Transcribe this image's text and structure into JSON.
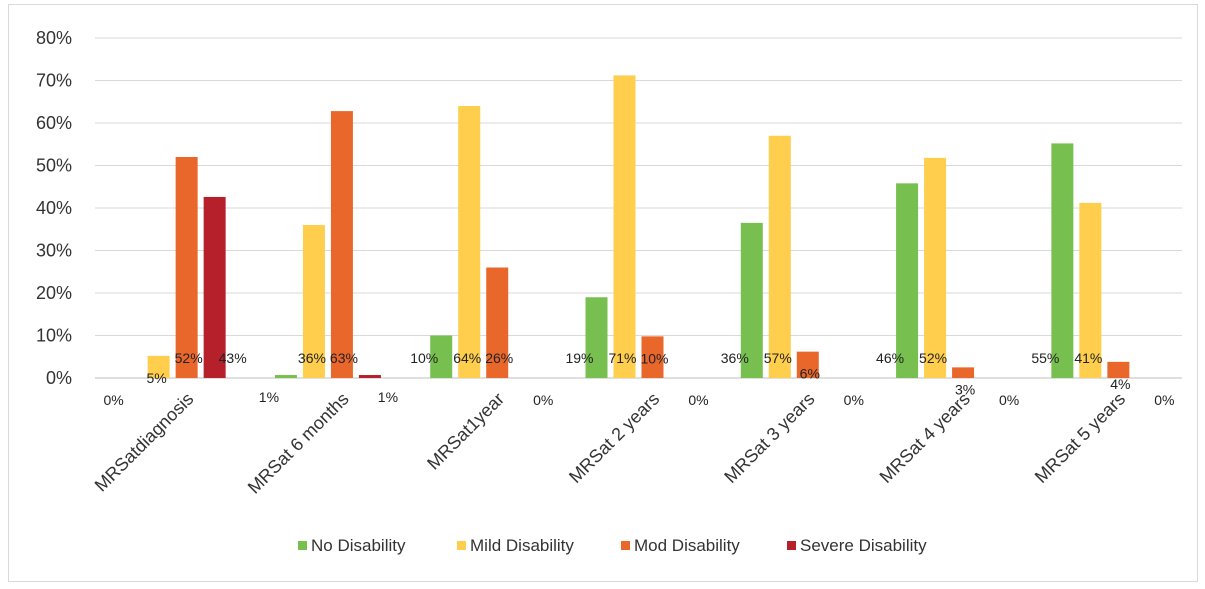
{
  "chart_data": {
    "type": "bar",
    "categories": [
      "MRSatdiagnosis",
      "MRSat 6 months",
      "MRSat1year",
      "MRSat 2 years",
      "MRSat 3 years",
      "MRSat 4 years",
      "MRSat 5 years"
    ],
    "series": [
      {
        "name": "No Disability",
        "color": "#77c04f",
        "values": [
          0,
          0.7,
          10,
          19,
          36.5,
          45.8,
          55.2
        ],
        "labels": [
          "0%",
          "1%",
          "10%",
          "19%",
          "36%",
          "46%",
          "55%"
        ]
      },
      {
        "name": "Mild Disability",
        "color": "#fece4c",
        "values": [
          5.2,
          36,
          64,
          71.2,
          57,
          51.8,
          41.2
        ],
        "labels": [
          "5%",
          "36%",
          "64%",
          "71%",
          "57%",
          "52%",
          "41%"
        ]
      },
      {
        "name": "Mod Disability",
        "color": "#ea672c",
        "values": [
          52,
          62.8,
          26,
          9.8,
          6.2,
          2.5,
          3.8
        ],
        "labels": [
          "52%",
          "63%",
          "26%",
          "10%",
          "6%",
          "3%",
          "4%"
        ]
      },
      {
        "name": "Severe Disability",
        "color": "#b5202b",
        "values": [
          42.6,
          0.7,
          0,
          0,
          0,
          0,
          0
        ],
        "labels": [
          "43%",
          "1%",
          "0%",
          "0%",
          "0%",
          "0%",
          "0%"
        ]
      }
    ],
    "y_ticks": [
      "0%",
      "10%",
      "20%",
      "30%",
      "40%",
      "50%",
      "60%",
      "70%",
      "80%"
    ],
    "ylim": [
      0,
      80
    ],
    "grid": true,
    "legend_position": "bottom"
  }
}
